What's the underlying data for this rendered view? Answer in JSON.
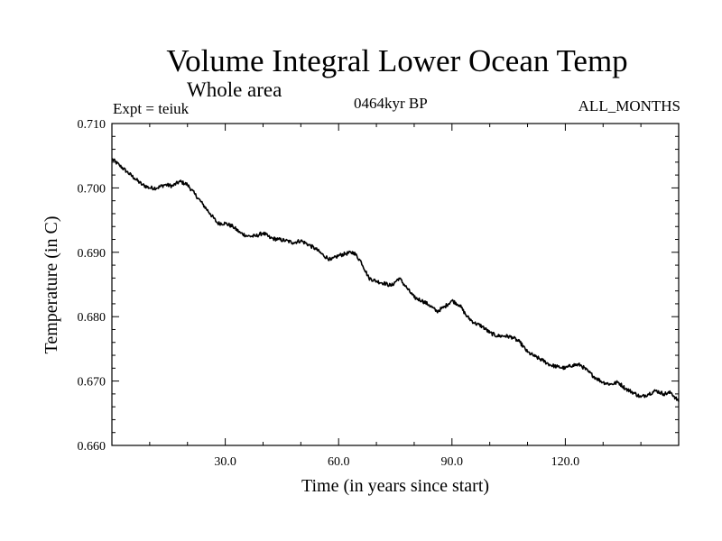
{
  "header": {
    "title": "Volume Integral Lower Ocean Temp",
    "subtitle": "Whole area",
    "experiment": "Expt = teiuk",
    "period": "0464kyr BP",
    "months": "ALL_MONTHS"
  },
  "chart_data": {
    "type": "line",
    "title": "Volume Integral Lower Ocean Temp",
    "xlabel": "Time (in years since start)",
    "ylabel": "Temperature (in C)",
    "xlim": [
      0,
      150
    ],
    "ylim": [
      0.66,
      0.71
    ],
    "xticks": [
      30,
      60,
      90,
      120
    ],
    "xtick_labels": [
      "30.0",
      "60.0",
      "90.0",
      "120.0"
    ],
    "yticks": [
      0.66,
      0.67,
      0.68,
      0.69,
      0.7,
      0.71
    ],
    "ytick_labels": [
      "0.660",
      "0.670",
      "0.680",
      "0.690",
      "0.700",
      "0.710"
    ],
    "grid": false,
    "series": [
      {
        "name": "Volume integral lower ocean temperature",
        "x": [
          0,
          2,
          4,
          6,
          8,
          10,
          12,
          14,
          16,
          18,
          20,
          22,
          24,
          26,
          28,
          30,
          32,
          34,
          36,
          38,
          40,
          42,
          44,
          46,
          48,
          50,
          52,
          54,
          56,
          58,
          60,
          62,
          64,
          66,
          68,
          70,
          72,
          74,
          76,
          78,
          80,
          82,
          84,
          86,
          88,
          90,
          92,
          94,
          96,
          98,
          100,
          102,
          104,
          106,
          108,
          110,
          112,
          114,
          116,
          118,
          120,
          122,
          124,
          126,
          128,
          130,
          132,
          134,
          136,
          138,
          140,
          142,
          144,
          146,
          148,
          150
        ],
        "values": [
          0.7045,
          0.7035,
          0.7025,
          0.7015,
          0.7005,
          0.7,
          0.7,
          0.7005,
          0.7003,
          0.701,
          0.7005,
          0.699,
          0.6975,
          0.696,
          0.6945,
          0.6945,
          0.694,
          0.693,
          0.6925,
          0.6925,
          0.693,
          0.6922,
          0.692,
          0.6918,
          0.6915,
          0.6918,
          0.6912,
          0.6905,
          0.6895,
          0.6888,
          0.6895,
          0.6898,
          0.69,
          0.6885,
          0.686,
          0.6855,
          0.6852,
          0.6848,
          0.686,
          0.6845,
          0.683,
          0.6825,
          0.6818,
          0.6808,
          0.6815,
          0.6825,
          0.6818,
          0.68,
          0.679,
          0.6785,
          0.6775,
          0.677,
          0.677,
          0.6768,
          0.676,
          0.6745,
          0.6738,
          0.6732,
          0.6725,
          0.6722,
          0.672,
          0.6725,
          0.6725,
          0.6715,
          0.6705,
          0.6698,
          0.6695,
          0.6698,
          0.6688,
          0.6682,
          0.6675,
          0.668,
          0.6685,
          0.668,
          0.6682,
          0.6668
        ]
      }
    ]
  }
}
